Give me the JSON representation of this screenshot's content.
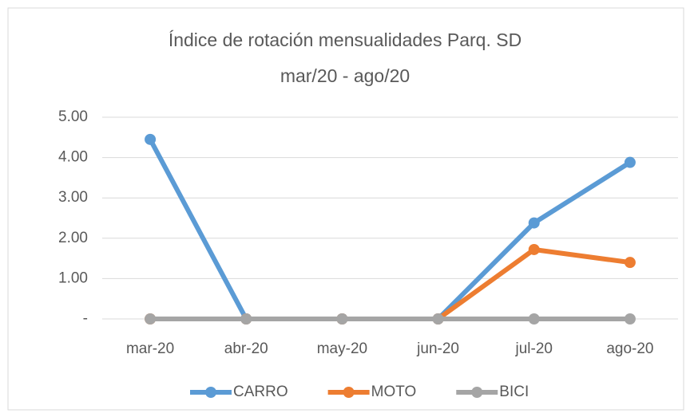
{
  "chart_data": {
    "type": "line",
    "title": "Índice de rotación mensualidades Parq. SD",
    "subtitle": "mar/20 - ago/20",
    "categories": [
      "mar-20",
      "abr-20",
      "may-20",
      "jun-20",
      "jul-20",
      "ago-20"
    ],
    "series": [
      {
        "name": "CARRO",
        "color": "#5b9bd5",
        "values": [
          4.45,
          0,
          0,
          0,
          2.38,
          3.88
        ]
      },
      {
        "name": "MOTO",
        "color": "#ed7d31",
        "values": [
          0,
          0,
          0,
          0,
          1.72,
          1.4
        ]
      },
      {
        "name": "BICI",
        "color": "#a5a5a5",
        "values": [
          0,
          0,
          0,
          0,
          0,
          0
        ]
      }
    ],
    "ylim": [
      0,
      5
    ],
    "yticks": [
      {
        "value": 0,
        "label": "-"
      },
      {
        "value": 1,
        "label": "1.00"
      },
      {
        "value": 2,
        "label": "2.00"
      },
      {
        "value": 3,
        "label": "3.00"
      },
      {
        "value": 4,
        "label": "4.00"
      },
      {
        "value": 5,
        "label": "5.00"
      }
    ],
    "grid": true,
    "legend": "bottom"
  }
}
